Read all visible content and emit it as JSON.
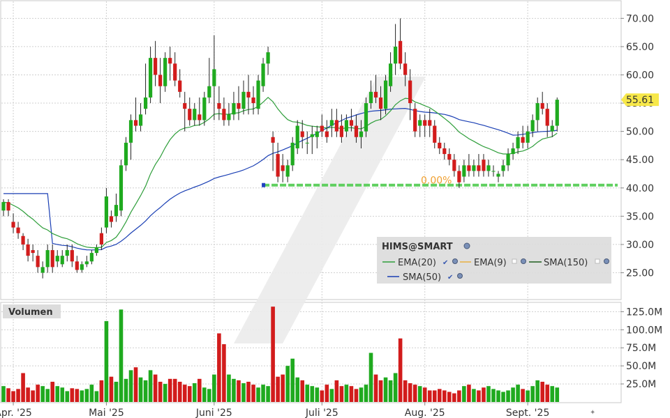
{
  "chart_data": {
    "type": "candlestick",
    "symbol": "HIMS@SMART",
    "price_axis": {
      "ticks": [
        25,
        30,
        35,
        40,
        45,
        50,
        55,
        60,
        65,
        70
      ],
      "tick_labels": [
        "25.00",
        "30.00",
        "35.00",
        "40.00",
        "45.00",
        "50.00",
        "55.00",
        "60.00",
        "65.00",
        "70.00"
      ],
      "range": [
        20.5,
        73
      ]
    },
    "last_price": {
      "value": 55.61,
      "label": "55.61"
    },
    "fib_line": {
      "price": 40.5,
      "label": "0.00%"
    },
    "x_axis": {
      "labels": [
        "Apr. '25",
        "Mai '25",
        "Juni '25",
        "Juli '25",
        "Aug. '25",
        "Sept. '25"
      ],
      "label_index": [
        2,
        21,
        43,
        65,
        86,
        107
      ]
    },
    "legend": {
      "title": "HIMS@SMART",
      "items": [
        {
          "name": "EMA(20)",
          "color": "#2e9e3a"
        },
        {
          "name": "EMA(9)",
          "color": "#e8b040"
        },
        {
          "name": "SMA(150)",
          "color": "#1e5e1e"
        },
        {
          "name": "SMA(50)",
          "color": "#1a3fb4"
        }
      ]
    },
    "volume": {
      "title": "Volumen",
      "ticks": [
        25,
        50,
        75,
        100,
        125
      ],
      "tick_labels": [
        "25.0M",
        "50.0M",
        "75.0M",
        "100.0M",
        "125.0M"
      ],
      "unit": "M",
      "range": [
        0,
        136
      ]
    },
    "candles": [
      [
        36,
        38,
        35,
        37.5
      ],
      [
        37.5,
        38,
        35,
        36
      ],
      [
        34,
        35.5,
        32,
        33
      ],
      [
        33,
        34,
        31,
        32
      ],
      [
        31.5,
        32,
        29,
        30
      ],
      [
        30,
        31,
        27,
        28
      ],
      [
        29,
        30,
        27,
        28.5
      ],
      [
        28,
        29,
        25,
        26
      ],
      [
        25,
        27,
        24,
        26
      ],
      [
        26,
        30,
        25,
        29
      ],
      [
        29,
        30,
        25,
        26
      ],
      [
        27,
        29,
        26,
        28
      ],
      [
        26.5,
        29,
        26,
        28
      ],
      [
        28,
        30,
        27,
        29
      ],
      [
        29,
        30,
        26,
        27
      ],
      [
        27,
        28,
        25,
        25.5
      ],
      [
        25.5,
        27,
        25,
        26.5
      ],
      [
        26.5,
        28,
        26,
        27
      ],
      [
        27,
        29,
        26.5,
        28.5
      ],
      [
        28.5,
        30,
        28,
        29.5
      ],
      [
        32,
        33,
        29,
        30
      ],
      [
        33,
        40,
        32,
        38.5
      ],
      [
        35,
        36,
        33,
        34
      ],
      [
        35,
        39,
        34,
        37
      ],
      [
        36,
        45,
        35,
        44
      ],
      [
        44,
        49,
        43,
        48
      ],
      [
        48,
        53,
        45,
        52
      ],
      [
        52,
        56,
        50,
        51
      ],
      [
        51,
        55,
        50,
        53
      ],
      [
        54,
        62,
        53,
        56
      ],
      [
        56,
        65,
        55,
        63
      ],
      [
        63,
        66,
        58,
        60
      ],
      [
        60,
        63,
        55,
        58
      ],
      [
        58,
        64,
        57,
        63
      ],
      [
        63,
        65,
        59,
        62
      ],
      [
        62,
        64,
        58,
        59
      ],
      [
        59,
        61,
        56,
        57
      ],
      [
        55,
        57,
        50,
        54
      ],
      [
        54,
        56,
        51,
        52
      ],
      [
        52,
        55,
        51,
        54
      ],
      [
        53,
        56,
        51,
        52
      ],
      [
        52,
        57,
        51,
        56
      ],
      [
        56,
        63,
        55,
        58
      ],
      [
        58,
        67,
        52,
        61
      ],
      [
        55,
        58,
        52,
        54
      ],
      [
        54,
        56,
        51,
        52
      ],
      [
        52,
        55,
        51,
        53
      ],
      [
        53,
        57,
        52,
        55
      ],
      [
        55,
        58,
        52,
        54
      ],
      [
        54,
        59,
        53,
        57
      ],
      [
        57,
        60,
        53,
        56
      ],
      [
        56,
        58,
        53,
        55
      ],
      [
        54,
        60,
        53,
        59
      ],
      [
        58,
        63,
        57,
        62
      ],
      [
        62,
        65,
        60,
        64
      ],
      [
        49,
        50,
        43,
        48
      ],
      [
        46,
        48,
        41,
        42
      ],
      [
        44,
        46,
        41,
        43
      ],
      [
        42,
        45,
        41,
        44
      ],
      [
        44,
        49,
        43,
        48
      ],
      [
        47,
        52,
        46,
        51
      ],
      [
        50,
        52,
        47,
        49
      ],
      [
        48,
        50,
        46,
        48
      ],
      [
        49,
        51,
        46,
        49.5
      ],
      [
        49,
        51,
        47,
        50
      ],
      [
        51,
        53,
        49,
        50
      ],
      [
        50,
        52,
        48,
        49
      ],
      [
        51,
        54,
        49,
        52
      ],
      [
        52,
        54,
        49,
        50
      ],
      [
        51,
        53,
        48,
        49
      ],
      [
        50,
        53,
        49,
        52
      ],
      [
        52,
        54,
        50,
        51
      ],
      [
        51,
        53,
        48,
        49
      ],
      [
        49,
        52,
        47,
        50
      ],
      [
        50,
        56,
        49,
        55
      ],
      [
        55,
        59,
        54,
        57
      ],
      [
        57,
        60,
        55,
        56
      ],
      [
        56,
        58,
        52,
        54
      ],
      [
        54,
        60,
        53,
        59
      ],
      [
        58,
        64,
        57,
        62
      ],
      [
        62,
        69,
        60,
        65
      ],
      [
        66,
        70,
        61,
        62
      ],
      [
        62,
        64,
        58,
        60
      ],
      [
        59,
        61,
        52,
        55
      ],
      [
        54,
        55,
        49,
        50
      ],
      [
        51,
        53,
        49,
        52
      ],
      [
        52,
        53,
        49,
        51
      ],
      [
        52,
        54,
        49,
        51
      ],
      [
        51,
        52,
        47,
        48
      ],
      [
        48,
        49,
        46,
        47
      ],
      [
        47,
        48,
        45,
        46
      ],
      [
        46,
        47,
        44,
        45
      ],
      [
        45,
        46,
        42,
        43
      ],
      [
        43,
        44,
        40,
        41
      ],
      [
        42,
        45,
        41,
        44
      ],
      [
        44,
        46,
        42,
        43
      ],
      [
        43,
        45,
        42,
        44
      ],
      [
        44,
        46,
        42,
        43
      ],
      [
        45,
        46,
        42,
        43
      ],
      [
        43,
        45,
        42,
        44
      ],
      [
        43,
        44,
        42,
        43
      ],
      [
        42,
        43,
        41,
        42.5
      ],
      [
        43,
        45,
        42,
        44
      ],
      [
        44,
        47,
        43,
        46
      ],
      [
        46,
        48,
        45,
        47
      ],
      [
        47,
        50,
        46,
        49
      ],
      [
        49,
        51,
        47,
        48
      ],
      [
        48,
        51,
        47,
        50
      ],
      [
        50,
        53,
        49,
        52
      ],
      [
        52,
        56,
        50,
        55
      ],
      [
        55,
        57,
        53,
        54
      ],
      [
        54,
        55,
        49,
        51
      ],
      [
        50,
        52,
        49,
        51
      ],
      [
        51,
        56,
        50,
        55.61
      ]
    ],
    "volumes": [
      22,
      19,
      15,
      18,
      40,
      20,
      16,
      24,
      22,
      18,
      28,
      22,
      20,
      15,
      19,
      18,
      16,
      18,
      24,
      15,
      30,
      112,
      35,
      28,
      128,
      32,
      44,
      48,
      34,
      30,
      44,
      38,
      28,
      25,
      32,
      32,
      28,
      24,
      22,
      26,
      32,
      20,
      18,
      38,
      95,
      80,
      38,
      32,
      30,
      26,
      28,
      24,
      20,
      24,
      22,
      132,
      35,
      38,
      50,
      60,
      34,
      30,
      24,
      22,
      20,
      16,
      24,
      18,
      30,
      22,
      24,
      22,
      18,
      20,
      24,
      68,
      38,
      30,
      34,
      30,
      40,
      88,
      30,
      26,
      24,
      22,
      20,
      16,
      16,
      18,
      16,
      14,
      12,
      16,
      22,
      24,
      18,
      16,
      20,
      22,
      18,
      16,
      14,
      16,
      20,
      24,
      18,
      16,
      22,
      30,
      28,
      24,
      22,
      20,
      30
    ]
  }
}
